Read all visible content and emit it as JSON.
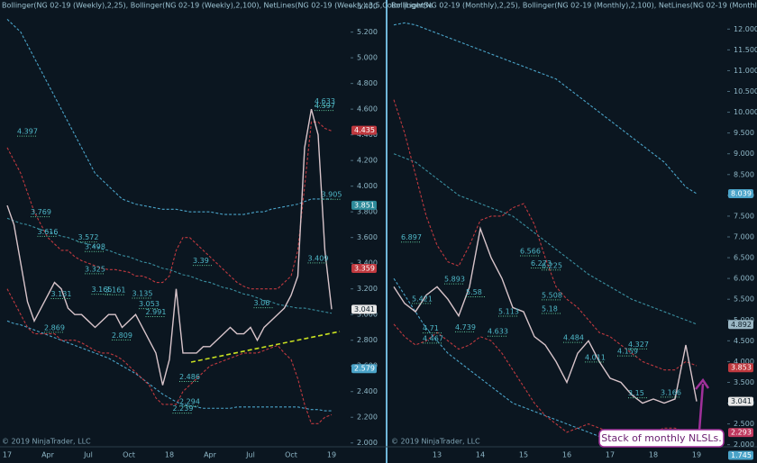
{
  "chart_data": [
    {
      "type": "line",
      "title": "Bollinger(NG 02-19 (Weekly),2,25), Bollinger(NG 02-19 (Weekly),2,100), NetLines(NG 02-19 (Weekly);3;5,Color |LightSe",
      "copyright": "© 2019 NinjaTrader, LLC",
      "categories": [
        "17",
        null,
        null,
        null,
        null,
        null,
        "Apr",
        null,
        null,
        null,
        null,
        null,
        "Jul",
        null,
        null,
        null,
        null,
        null,
        "Oct",
        null,
        null,
        null,
        null,
        null,
        "18",
        null,
        null,
        null,
        null,
        null,
        "Apr",
        null,
        null,
        null,
        null,
        null,
        "Jul",
        null,
        null,
        null,
        null,
        null,
        "Oct",
        null,
        null,
        null,
        null,
        null,
        "19"
      ],
      "ylim": [
        1.97,
        5.45
      ],
      "yticks": [
        {
          "value": 2.0,
          "label": "2.000"
        },
        {
          "value": 2.2,
          "label": "2.200"
        },
        {
          "value": 2.4,
          "label": "2.400"
        },
        {
          "value": 2.6,
          "label": "2.600"
        },
        {
          "value": 2.8,
          "label": "2.800"
        },
        {
          "value": 3.0,
          "label": "3.000"
        },
        {
          "value": 3.2,
          "label": "3.200"
        },
        {
          "value": 3.4,
          "label": "3.400"
        },
        {
          "value": 3.6,
          "label": "3.600"
        },
        {
          "value": 3.8,
          "label": "3.800"
        },
        {
          "value": 4.0,
          "label": "4.000"
        },
        {
          "value": 4.2,
          "label": "4.200"
        },
        {
          "value": 4.4,
          "label": "4.400"
        },
        {
          "value": 4.6,
          "label": "4.600"
        },
        {
          "value": 4.8,
          "label": "4.800"
        },
        {
          "value": 5.0,
          "label": "5.000"
        },
        {
          "value": 5.2,
          "label": "5.200"
        },
        {
          "value": 5.4,
          "label": "5.400"
        }
      ],
      "series": [
        {
          "color": "#4aa3c8",
          "dashed": true,
          "values": [
            5.3,
            5.25,
            5.2,
            5.1,
            5.0,
            4.9,
            4.8,
            4.7,
            4.6,
            4.5,
            4.4,
            4.3,
            4.2,
            4.1,
            4.05,
            4.0,
            3.95,
            3.9,
            3.88,
            3.86,
            3.85,
            3.84,
            3.83,
            3.82,
            3.82,
            3.82,
            3.81,
            3.8,
            3.8,
            3.8,
            3.8,
            3.79,
            3.78,
            3.78,
            3.78,
            3.78,
            3.79,
            3.8,
            3.8,
            3.82,
            3.83,
            3.84,
            3.85,
            3.86,
            3.88,
            3.9,
            3.9,
            3.9,
            3.9
          ]
        },
        {
          "color": "#3a8fa0",
          "dashed": true,
          "values": [
            3.75,
            3.73,
            3.71,
            3.7,
            3.68,
            3.66,
            3.65,
            3.63,
            3.61,
            3.6,
            3.58,
            3.56,
            3.55,
            3.53,
            3.51,
            3.5,
            3.48,
            3.46,
            3.45,
            3.43,
            3.41,
            3.4,
            3.38,
            3.36,
            3.35,
            3.33,
            3.31,
            3.3,
            3.28,
            3.26,
            3.25,
            3.23,
            3.21,
            3.2,
            3.18,
            3.16,
            3.15,
            3.13,
            3.11,
            3.1,
            3.08,
            3.07,
            3.06,
            3.05,
            3.05,
            3.04,
            3.03,
            3.02,
            3.01
          ]
        },
        {
          "color": "#4aa3c8",
          "dashed": true,
          "values": [
            2.95,
            2.93,
            2.92,
            2.9,
            2.88,
            2.86,
            2.84,
            2.82,
            2.8,
            2.78,
            2.76,
            2.74,
            2.72,
            2.7,
            2.68,
            2.66,
            2.63,
            2.6,
            2.57,
            2.54,
            2.5,
            2.46,
            2.42,
            2.38,
            2.35,
            2.32,
            2.3,
            2.29,
            2.28,
            2.27,
            2.27,
            2.27,
            2.27,
            2.27,
            2.28,
            2.28,
            2.28,
            2.28,
            2.28,
            2.28,
            2.28,
            2.28,
            2.28,
            2.28,
            2.27,
            2.26,
            2.26,
            2.25,
            2.25
          ]
        },
        {
          "color": "#c0393f",
          "dashed": true,
          "values": [
            4.3,
            4.2,
            4.1,
            3.95,
            3.8,
            3.7,
            3.6,
            3.55,
            3.5,
            3.5,
            3.45,
            3.42,
            3.4,
            3.38,
            3.36,
            3.35,
            3.35,
            3.34,
            3.33,
            3.3,
            3.3,
            3.28,
            3.25,
            3.25,
            3.3,
            3.5,
            3.6,
            3.6,
            3.55,
            3.5,
            3.45,
            3.4,
            3.35,
            3.3,
            3.25,
            3.22,
            3.2,
            3.2,
            3.2,
            3.2,
            3.2,
            3.25,
            3.3,
            3.5,
            4.0,
            4.5,
            4.5,
            4.45,
            4.43
          ]
        },
        {
          "color": "#c0393f",
          "dashed": true,
          "values": [
            3.2,
            3.1,
            3.0,
            2.9,
            2.85,
            2.85,
            2.85,
            2.85,
            2.8,
            2.8,
            2.8,
            2.78,
            2.75,
            2.72,
            2.7,
            2.7,
            2.68,
            2.65,
            2.6,
            2.55,
            2.5,
            2.45,
            2.35,
            2.3,
            2.3,
            2.3,
            2.4,
            2.45,
            2.5,
            2.55,
            2.6,
            2.62,
            2.64,
            2.66,
            2.68,
            2.7,
            2.7,
            2.7,
            2.72,
            2.74,
            2.76,
            2.7,
            2.65,
            2.5,
            2.3,
            2.15,
            2.15,
            2.2,
            2.22
          ]
        },
        {
          "color": "#d8c4ca",
          "dashed": false,
          "values": [
            3.85,
            3.7,
            3.4,
            3.1,
            2.95,
            3.05,
            3.15,
            3.25,
            3.2,
            3.05,
            3.0,
            3.0,
            2.95,
            2.9,
            2.95,
            3.0,
            3.0,
            2.9,
            2.95,
            3.0,
            2.9,
            2.8,
            2.7,
            2.45,
            2.65,
            3.2,
            2.7,
            2.7,
            2.7,
            2.75,
            2.75,
            2.8,
            2.85,
            2.9,
            2.85,
            2.85,
            2.9,
            2.8,
            2.9,
            2.95,
            3.0,
            3.05,
            3.15,
            3.3,
            4.3,
            4.6,
            4.4,
            3.5,
            3.041
          ]
        }
      ],
      "level_labels": [
        {
          "x": 2,
          "value": 4.397
        },
        {
          "x": 4,
          "value": 3.769
        },
        {
          "x": 5,
          "value": 3.616
        },
        {
          "x": 11,
          "value": 3.572
        },
        {
          "x": 12,
          "value": 3.498
        },
        {
          "x": 12,
          "value": 3.325
        },
        {
          "x": 7,
          "value": 3.131
        },
        {
          "x": 13,
          "value": 3.165
        },
        {
          "x": 15,
          "value": 3.161
        },
        {
          "x": 19,
          "value": 3.135
        },
        {
          "x": 20,
          "value": 3.053
        },
        {
          "x": 21,
          "value": 2.991
        },
        {
          "x": 6,
          "value": 2.869
        },
        {
          "x": 16,
          "value": 2.809
        },
        {
          "x": 28,
          "value": 3.39
        },
        {
          "x": 45,
          "value": 3.409
        },
        {
          "x": 37,
          "value": 3.06
        },
        {
          "x": 26,
          "value": 2.486
        },
        {
          "x": 26,
          "value": 2.294
        },
        {
          "x": 25,
          "value": 2.239
        },
        {
          "x": 46,
          "value": 4.633
        },
        {
          "x": 46,
          "value": 4.597
        },
        {
          "x": 47,
          "value": 3.905
        }
      ],
      "price_tags": [
        {
          "value": 4.435,
          "color": "#c0393f"
        },
        {
          "value": 3.851,
          "color": "#2d8a9a"
        },
        {
          "value": 3.359,
          "color": "#c0393f"
        },
        {
          "value": 3.041,
          "color": "#e8e8e8"
        },
        {
          "value": 2.579,
          "color": "#4aa3c8"
        }
      ]
    },
    {
      "type": "line",
      "title": "Bollinger(NG 02-19 (Monthly),2,25), Bollinger(NG 02-19 (Monthly),2,100), NetLines(NG 02-19 (Monthly);3;5,Color",
      "copyright": "© 2019 NinjaTrader, LLC",
      "annotation": "Stack of monthly NLSLs.",
      "categories": [
        null,
        null,
        null,
        null,
        "13",
        null,
        null,
        null,
        "14",
        null,
        null,
        null,
        "15",
        null,
        null,
        null,
        "16",
        null,
        null,
        null,
        "17",
        null,
        null,
        null,
        "18",
        null,
        null,
        null,
        "19"
      ],
      "ylim": [
        1.95,
        12.7
      ],
      "yticks": [
        {
          "value": 2.0,
          "label": "2.000"
        },
        {
          "value": 2.5,
          "label": "2.500"
        },
        {
          "value": 3.0,
          "label": "3.000"
        },
        {
          "value": 3.5,
          "label": "3.500"
        },
        {
          "value": 4.0,
          "label": "4.000"
        },
        {
          "value": 4.5,
          "label": "4.500"
        },
        {
          "value": 5.0,
          "label": "5.000"
        },
        {
          "value": 5.5,
          "label": "5.500"
        },
        {
          "value": 6.0,
          "label": "6.000"
        },
        {
          "value": 6.5,
          "label": "6.500"
        },
        {
          "value": 7.0,
          "label": "7.000"
        },
        {
          "value": 7.5,
          "label": "7.500"
        },
        {
          "value": 8.0,
          "label": "8.000"
        },
        {
          "value": 8.5,
          "label": "8.500"
        },
        {
          "value": 9.0,
          "label": "9.000"
        },
        {
          "value": 9.5,
          "label": "9.500"
        },
        {
          "value": 10.0,
          "label": "10.000"
        },
        {
          "value": 10.5,
          "label": "10.500"
        },
        {
          "value": 11.0,
          "label": "11.000"
        },
        {
          "value": 11.5,
          "label": "11.500"
        },
        {
          "value": 12.0,
          "label": "12.000"
        }
      ],
      "series": [
        {
          "color": "#4aa3c8",
          "dashed": true,
          "values": [
            12.1,
            12.15,
            12.1,
            12.0,
            11.9,
            11.8,
            11.7,
            11.6,
            11.5,
            11.4,
            11.3,
            11.2,
            11.1,
            11.0,
            10.9,
            10.8,
            10.6,
            10.4,
            10.2,
            10.0,
            9.8,
            9.6,
            9.4,
            9.2,
            9.0,
            8.8,
            8.5,
            8.2,
            8.04
          ]
        },
        {
          "color": "#3a8fa0",
          "dashed": true,
          "values": [
            9.0,
            8.9,
            8.8,
            8.6,
            8.4,
            8.2,
            8.0,
            7.9,
            7.8,
            7.7,
            7.6,
            7.5,
            7.3,
            7.1,
            6.9,
            6.7,
            6.5,
            6.3,
            6.1,
            5.95,
            5.8,
            5.65,
            5.5,
            5.4,
            5.3,
            5.2,
            5.1,
            5.0,
            4.9
          ]
        },
        {
          "color": "#4aa3c8",
          "dashed": true,
          "values": [
            6.0,
            5.6,
            5.2,
            4.8,
            4.5,
            4.2,
            4.0,
            3.8,
            3.6,
            3.4,
            3.2,
            3.0,
            2.9,
            2.8,
            2.7,
            2.6,
            2.5,
            2.4,
            2.3,
            2.2,
            2.1,
            2.05,
            2.0,
            1.95,
            1.9,
            1.85,
            1.8,
            1.75,
            1.75
          ]
        },
        {
          "color": "#c0393f",
          "dashed": true,
          "values": [
            10.3,
            9.5,
            8.5,
            7.5,
            6.8,
            6.4,
            6.3,
            6.8,
            7.4,
            7.5,
            7.5,
            7.7,
            7.8,
            7.3,
            6.5,
            5.8,
            5.5,
            5.3,
            5.0,
            4.7,
            4.6,
            4.4,
            4.2,
            4.0,
            3.9,
            3.8,
            3.8,
            4.0,
            3.9
          ]
        },
        {
          "color": "#c0393f",
          "dashed": true,
          "values": [
            4.9,
            4.6,
            4.4,
            4.5,
            4.7,
            4.5,
            4.3,
            4.4,
            4.6,
            4.5,
            4.2,
            3.8,
            3.4,
            3.0,
            2.7,
            2.5,
            2.3,
            2.4,
            2.5,
            2.4,
            2.3,
            2.3,
            2.2,
            2.2,
            2.3,
            2.4,
            2.4,
            2.3,
            2.3
          ]
        },
        {
          "color": "#d8c4ca",
          "dashed": false,
          "values": [
            5.8,
            5.4,
            5.2,
            5.6,
            5.8,
            5.5,
            5.1,
            5.8,
            7.2,
            6.5,
            6.0,
            5.3,
            5.2,
            4.6,
            4.4,
            4.0,
            3.5,
            4.2,
            4.5,
            4.0,
            3.6,
            3.5,
            3.2,
            3.0,
            3.1,
            3.0,
            3.1,
            4.4,
            3.041
          ]
        }
      ],
      "level_labels": [
        {
          "x": 1,
          "value": 6.897
        },
        {
          "x": 2,
          "value": 5.421
        },
        {
          "x": 3,
          "value": 4.71
        },
        {
          "x": 3,
          "value": 4.467
        },
        {
          "x": 5,
          "value": 5.893
        },
        {
          "x": 7,
          "value": 5.58
        },
        {
          "x": 6,
          "value": 4.739
        },
        {
          "x": 10,
          "value": 5.113
        },
        {
          "x": 9,
          "value": 4.633
        },
        {
          "x": 12,
          "value": 6.566
        },
        {
          "x": 13,
          "value": 6.273
        },
        {
          "x": 14,
          "value": 6.225
        },
        {
          "x": 14,
          "value": 5.508
        },
        {
          "x": 14,
          "value": 5.18
        },
        {
          "x": 16,
          "value": 4.484
        },
        {
          "x": 18,
          "value": 4.011
        },
        {
          "x": 21,
          "value": 4.159
        },
        {
          "x": 22,
          "value": 4.327
        },
        {
          "x": 22,
          "value": 3.15
        },
        {
          "x": 25,
          "value": 3.166
        }
      ],
      "price_tags": [
        {
          "value": 8.039,
          "color": "#4aa3c8"
        },
        {
          "value": 4.892,
          "color": "#9bb7c4"
        },
        {
          "value": 3.853,
          "color": "#c0393f"
        },
        {
          "value": 3.041,
          "color": "#e8e8e8"
        },
        {
          "value": 2.293,
          "color": "#c0395f"
        },
        {
          "value": 1.745,
          "color": "#4aa3c8"
        }
      ]
    }
  ]
}
